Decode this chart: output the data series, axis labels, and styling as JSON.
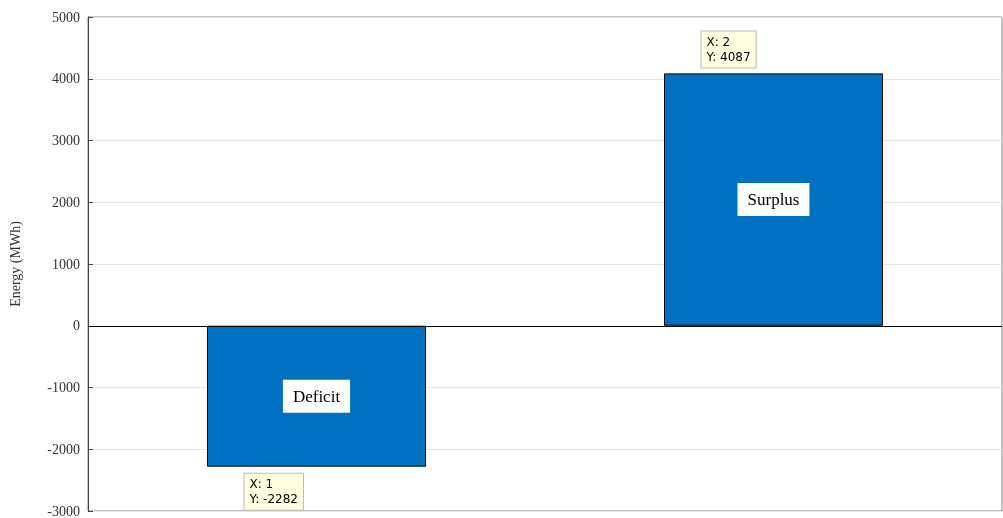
{
  "chart_data": {
    "type": "bar",
    "ylabel": "Energy (MWh)",
    "categories": [
      null,
      null
    ],
    "values": [
      -2282,
      4087
    ],
    "color": "#0070c0",
    "value_labels": [
      "Deficit",
      "Surplus"
    ],
    "ylim": [
      -3000,
      5000
    ],
    "yticks": [
      -3000,
      -2000,
      -1000,
      0,
      1000,
      2000,
      3000,
      4000,
      5000
    ],
    "grid": "y",
    "tick_labels": "y",
    "ref_lines": [
      {
        "axis": "y",
        "value": 0,
        "color": "#000000"
      }
    ],
    "annotations": [
      {
        "text": "X: 1\nY: -2282",
        "y": -2282
      },
      {
        "text": "X: 2\nY: 4087",
        "y": 4087
      }
    ]
  }
}
